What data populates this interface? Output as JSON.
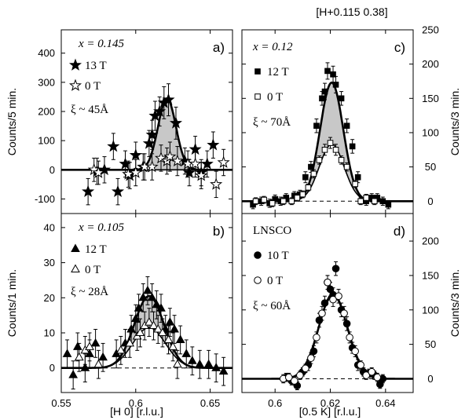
{
  "header": "[H+0.115 0.38]",
  "left_xlabel": "[H 0] [r.l.u.]",
  "right_xlabel": "[0.5 K] [r.l.u.]",
  "chart_data": [
    {
      "id": "a",
      "panel_label": "a)",
      "type": "scatter",
      "param": "x = 0.145",
      "xi": "ξ ~ 45Å",
      "ylabel": "Counts/5 min.",
      "xlim": [
        0.55,
        0.665
      ],
      "ylim": [
        -150,
        480
      ],
      "yticks": [
        -100,
        0,
        100,
        200,
        300,
        400
      ],
      "xticks": [
        0.55,
        0.6,
        0.65
      ],
      "show_xticklabels": false,
      "yaxis_side": "left",
      "fit_shaded": true,
      "series": [
        {
          "name": "13 T",
          "marker": "star",
          "filled": true,
          "fit": {
            "amp": 245,
            "center": 0.621,
            "sigma": 0.006,
            "base": 0
          },
          "points": [
            [
              0.568,
              -75,
              45
            ],
            [
              0.574,
              -5,
              45
            ],
            [
              0.579,
              0,
              45
            ],
            [
              0.585,
              80,
              45
            ],
            [
              0.588,
              -75,
              45
            ],
            [
              0.593,
              20,
              45
            ],
            [
              0.596,
              -20,
              45
            ],
            [
              0.6,
              50,
              45
            ],
            [
              0.605,
              10,
              45
            ],
            [
              0.609,
              90,
              45
            ],
            [
              0.611,
              120,
              50
            ],
            [
              0.613,
              185,
              50
            ],
            [
              0.616,
              200,
              50
            ],
            [
              0.619,
              230,
              55
            ],
            [
              0.622,
              240,
              55
            ],
            [
              0.627,
              160,
              55
            ],
            [
              0.633,
              30,
              45
            ],
            [
              0.636,
              -10,
              45
            ],
            [
              0.64,
              70,
              45
            ],
            [
              0.644,
              -10,
              45
            ],
            [
              0.648,
              20,
              45
            ],
            [
              0.652,
              85,
              45
            ]
          ]
        },
        {
          "name": "0 T",
          "marker": "star",
          "filled": false,
          "fit": {
            "amp": 0,
            "center": 0.62,
            "sigma": 0.006,
            "base": 0
          },
          "points": [
            [
              0.572,
              0,
              40
            ],
            [
              0.575,
              -10,
              40
            ],
            [
              0.595,
              -15,
              45
            ],
            [
              0.6,
              -10,
              45
            ],
            [
              0.606,
              10,
              45
            ],
            [
              0.611,
              10,
              45
            ],
            [
              0.617,
              40,
              45
            ],
            [
              0.621,
              30,
              45
            ],
            [
              0.623,
              45,
              50
            ],
            [
              0.628,
              30,
              50
            ],
            [
              0.635,
              20,
              45
            ],
            [
              0.64,
              20,
              45
            ],
            [
              0.644,
              -20,
              45
            ],
            [
              0.654,
              -50,
              45
            ],
            [
              0.659,
              25,
              45
            ]
          ]
        }
      ]
    },
    {
      "id": "b",
      "panel_label": "b)",
      "type": "scatter",
      "param": "x = 0.105",
      "xi": "ξ ~ 28Å",
      "ylabel": "Counts/1 min.",
      "xlim": [
        0.55,
        0.665
      ],
      "ylim": [
        -7,
        44
      ],
      "yticks": [
        0,
        10,
        20,
        30,
        40
      ],
      "xticks": [
        0.55,
        0.6,
        0.65
      ],
      "xticklabels": [
        "0.55",
        "0.6",
        "0.65"
      ],
      "show_xticklabels": true,
      "yaxis_side": "left",
      "fit_shaded": true,
      "series": [
        {
          "name": "12 T",
          "marker": "triangle",
          "filled": true,
          "fit": {
            "amp": 20.5,
            "center": 0.609,
            "sigma": 0.01,
            "base": 0
          },
          "points": [
            [
              0.554,
              4,
              4
            ],
            [
              0.558,
              -2,
              4
            ],
            [
              0.561,
              6,
              4
            ],
            [
              0.566,
              0,
              4
            ],
            [
              0.569,
              4,
              4
            ],
            [
              0.573,
              7,
              4
            ],
            [
              0.578,
              3,
              4
            ],
            [
              0.587,
              4,
              4
            ],
            [
              0.593,
              7,
              4
            ],
            [
              0.597,
              11,
              4
            ],
            [
              0.6,
              14,
              4
            ],
            [
              0.602,
              17,
              4
            ],
            [
              0.605,
              20,
              4
            ],
            [
              0.608,
              22,
              4
            ],
            [
              0.611,
              20,
              4
            ],
            [
              0.614,
              18,
              4
            ],
            [
              0.617,
              17,
              4
            ],
            [
              0.62,
              11,
              4
            ],
            [
              0.623,
              13,
              4
            ],
            [
              0.626,
              11,
              4
            ],
            [
              0.63,
              8,
              4
            ],
            [
              0.634,
              4,
              4
            ],
            [
              0.638,
              2,
              4
            ],
            [
              0.643,
              1,
              4
            ],
            [
              0.649,
              1,
              4
            ],
            [
              0.654,
              0,
              4
            ],
            [
              0.659,
              -1,
              4
            ]
          ]
        },
        {
          "name": "0 T",
          "marker": "triangle",
          "filled": false,
          "fit": {
            "amp": 11.5,
            "center": 0.609,
            "sigma": 0.011,
            "base": 0
          },
          "points": [
            [
              0.562,
              3,
              4
            ],
            [
              0.566,
              5,
              4
            ],
            [
              0.569,
              6,
              4
            ],
            [
              0.575,
              1,
              4
            ],
            [
              0.59,
              5,
              4
            ],
            [
              0.596,
              7,
              4
            ],
            [
              0.601,
              9,
              4
            ],
            [
              0.603,
              10,
              4
            ],
            [
              0.606,
              12,
              4
            ],
            [
              0.609,
              13,
              4
            ],
            [
              0.612,
              12,
              4
            ],
            [
              0.615,
              11,
              4
            ],
            [
              0.618,
              10,
              4
            ],
            [
              0.622,
              8,
              4
            ],
            [
              0.625,
              6,
              4
            ],
            [
              0.628,
              1,
              4
            ]
          ]
        }
      ]
    },
    {
      "id": "c",
      "panel_label": "c)",
      "type": "scatter",
      "param": "x = 0.12",
      "xi": "ξ ~ 70Å",
      "ylabel": "Counts/3 min.",
      "xlim": [
        0.588,
        0.65
      ],
      "ylim": [
        -18,
        250
      ],
      "yticks": [
        0,
        50,
        100,
        150,
        200,
        250
      ],
      "xticks": [
        0.6,
        0.62,
        0.64
      ],
      "show_xticklabels": false,
      "yaxis_side": "right",
      "fit_shaded": true,
      "series": [
        {
          "name": "12 T",
          "marker": "square",
          "filled": true,
          "fit": {
            "amp": 173,
            "center": 0.6205,
            "sigma": 0.0042,
            "base": 0
          },
          "points": [
            [
              0.592,
              -5,
              6
            ],
            [
              0.595,
              0,
              6
            ],
            [
              0.598,
              -3,
              6
            ],
            [
              0.6,
              3,
              6
            ],
            [
              0.602,
              0,
              6
            ],
            [
              0.604,
              5,
              6
            ],
            [
              0.607,
              8,
              6
            ],
            [
              0.609,
              10,
              6
            ],
            [
              0.611,
              35,
              8
            ],
            [
              0.613,
              50,
              8
            ],
            [
              0.615,
              110,
              10
            ],
            [
              0.617,
              150,
              10
            ],
            [
              0.618,
              160,
              12
            ],
            [
              0.619,
              190,
              12
            ],
            [
              0.621,
              185,
              12
            ],
            [
              0.622,
              170,
              12
            ],
            [
              0.624,
              150,
              10
            ],
            [
              0.626,
              110,
              10
            ],
            [
              0.628,
              80,
              10
            ],
            [
              0.63,
              35,
              8
            ],
            [
              0.633,
              0,
              6
            ],
            [
              0.635,
              5,
              6
            ],
            [
              0.637,
              5,
              6
            ],
            [
              0.639,
              0,
              6
            ],
            [
              0.641,
              -5,
              6
            ]
          ]
        },
        {
          "name": "0 T",
          "marker": "square",
          "filled": false,
          "fit": {
            "amp": 83,
            "center": 0.6205,
            "sigma": 0.0045,
            "base": 0
          },
          "points": [
            [
              0.593,
              0,
              5
            ],
            [
              0.596,
              2,
              5
            ],
            [
              0.599,
              -3,
              5
            ],
            [
              0.603,
              0,
              5
            ],
            [
              0.606,
              0,
              5
            ],
            [
              0.608,
              5,
              5
            ],
            [
              0.61,
              10,
              5
            ],
            [
              0.612,
              20,
              5
            ],
            [
              0.614,
              40,
              6
            ],
            [
              0.616,
              60,
              6
            ],
            [
              0.618,
              75,
              8
            ],
            [
              0.62,
              85,
              8
            ],
            [
              0.622,
              75,
              8
            ],
            [
              0.624,
              60,
              6
            ],
            [
              0.626,
              50,
              6
            ],
            [
              0.629,
              25,
              5
            ],
            [
              0.631,
              0,
              5
            ],
            [
              0.633,
              5,
              5
            ],
            [
              0.636,
              0,
              5
            ]
          ]
        }
      ]
    },
    {
      "id": "d",
      "panel_label": "d)",
      "type": "scatter",
      "param": "LNSCO",
      "xi": "ξ ~ 60Å",
      "ylabel": "Counts/3 min.",
      "xlim": [
        0.588,
        0.65
      ],
      "ylim": [
        -20,
        240
      ],
      "yticks": [
        0,
        50,
        100,
        150,
        200
      ],
      "xticks": [
        0.6,
        0.62,
        0.64
      ],
      "xticklabels": [
        "0.6",
        "0.62",
        "0.64"
      ],
      "show_xticklabels": true,
      "yaxis_side": "right",
      "fit_shaded": false,
      "series": [
        {
          "name": "10 T",
          "marker": "circle",
          "filled": true,
          "fit": {
            "amp": 123,
            "center": 0.621,
            "sigma": 0.0052,
            "base": 0
          },
          "points": [
            [
              0.604,
              2,
              6
            ],
            [
              0.606,
              -3,
              6
            ],
            [
              0.608,
              -10,
              6
            ],
            [
              0.61,
              10,
              6
            ],
            [
              0.612,
              20,
              8
            ],
            [
              0.614,
              40,
              8
            ],
            [
              0.616,
              85,
              10
            ],
            [
              0.618,
              110,
              10
            ],
            [
              0.619,
              140,
              10
            ],
            [
              0.62,
              130,
              10
            ],
            [
              0.621,
              122,
              10
            ],
            [
              0.622,
              160,
              10
            ],
            [
              0.624,
              100,
              10
            ],
            [
              0.626,
              80,
              10
            ],
            [
              0.628,
              45,
              8
            ],
            [
              0.63,
              20,
              8
            ],
            [
              0.632,
              10,
              6
            ],
            [
              0.634,
              8,
              6
            ],
            [
              0.636,
              5,
              6
            ],
            [
              0.638,
              -8,
              6
            ],
            [
              0.639,
              0,
              6
            ]
          ]
        },
        {
          "name": "0 T",
          "marker": "circle",
          "filled": false,
          "fit": {
            "amp": 120,
            "center": 0.621,
            "sigma": 0.0054,
            "base": 0
          },
          "points": [
            [
              0.603,
              0,
              6
            ],
            [
              0.605,
              2,
              6
            ],
            [
              0.607,
              -3,
              6
            ],
            [
              0.609,
              5,
              6
            ],
            [
              0.611,
              15,
              6
            ],
            [
              0.613,
              30,
              8
            ],
            [
              0.615,
              60,
              8
            ],
            [
              0.617,
              95,
              10
            ],
            [
              0.619,
              140,
              10
            ],
            [
              0.621,
              115,
              10
            ],
            [
              0.623,
              120,
              10
            ],
            [
              0.625,
              95,
              10
            ],
            [
              0.627,
              60,
              8
            ],
            [
              0.629,
              40,
              8
            ],
            [
              0.631,
              20,
              6
            ],
            [
              0.633,
              5,
              6
            ],
            [
              0.635,
              10,
              6
            ],
            [
              0.637,
              2,
              6
            ]
          ]
        }
      ]
    }
  ]
}
